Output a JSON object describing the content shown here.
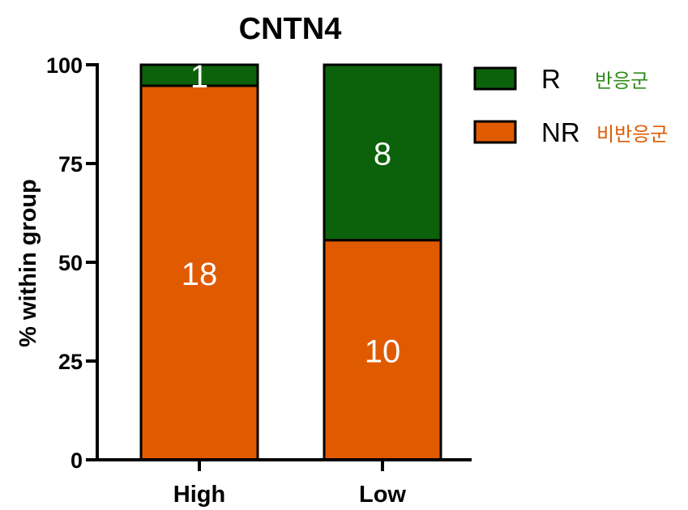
{
  "chart_data": {
    "type": "bar",
    "stacked": true,
    "title": "CNTN4",
    "ylabel": "% within group",
    "xlabel": "",
    "ylim": [
      0,
      100
    ],
    "yticks": [
      "0",
      "25",
      "50",
      "75",
      "100"
    ],
    "categories": [
      "High",
      "Low"
    ],
    "series": [
      {
        "name": "NR",
        "korean": "비반응군",
        "color": "#e05a00",
        "text_color": "#e05a00",
        "percent": [
          94.7,
          55.6
        ],
        "labels": [
          "18",
          "10"
        ]
      },
      {
        "name": "R",
        "korean": "반응군",
        "color": "#0b620b",
        "text_color": "#2e8b1a",
        "percent": [
          5.3,
          44.4
        ],
        "labels": [
          "1",
          "8"
        ]
      }
    ],
    "legend_position": "top-right",
    "grid": false
  }
}
